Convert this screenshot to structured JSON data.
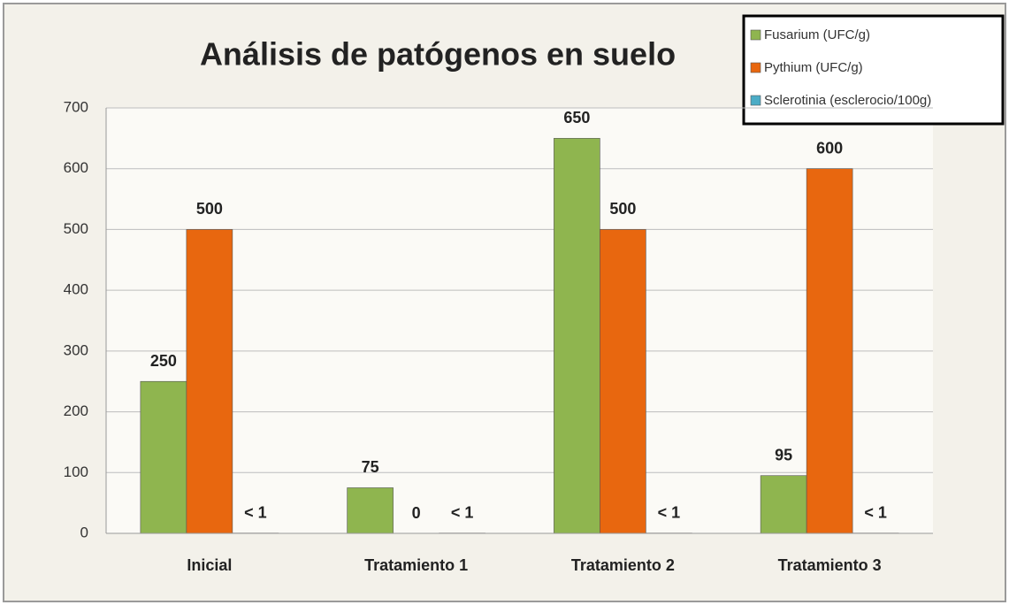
{
  "chart_data": {
    "type": "bar",
    "title": "Análisis de patógenos en suelo",
    "categories": [
      "Inicial",
      "Tratamiento 1",
      "Tratamiento 2",
      "Tratamiento 3"
    ],
    "series": [
      {
        "name": "Fusarium (UFC/g)",
        "color": "#8fb54f",
        "values": [
          250,
          75,
          650,
          95
        ]
      },
      {
        "name": "Pythium (UFC/g)",
        "color": "#e8670f",
        "values": [
          500,
          0,
          500,
          600
        ]
      },
      {
        "name": "Sclerotinia (esclerocio/100g)",
        "color": "#4bacc6",
        "values": [
          0.5,
          0.5,
          0.5,
          0.5
        ],
        "value_labels": [
          "< 1",
          "< 1",
          "< 1",
          "< 1"
        ]
      }
    ],
    "ylim": [
      0,
      700
    ],
    "yticks": [
      0,
      100,
      200,
      300,
      400,
      500,
      600,
      700
    ],
    "grid": true,
    "legend": "top-right"
  }
}
